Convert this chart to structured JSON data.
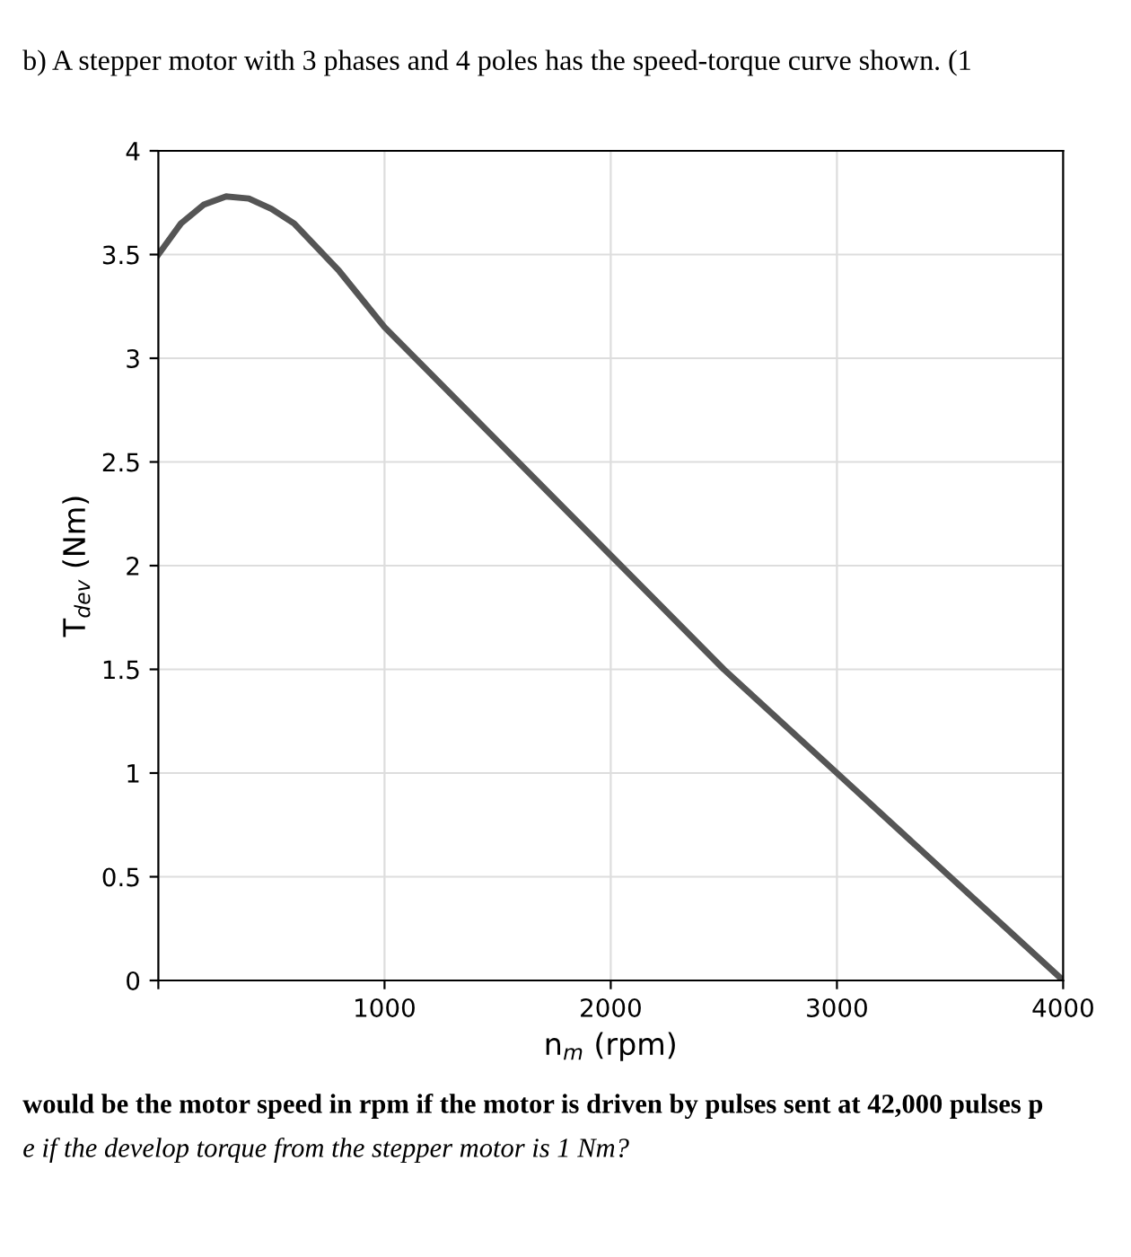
{
  "chart_data": {
    "type": "line",
    "title": "b) A stepper motor with 3 phases and 4 poles has the speed-torque curve shown. (1",
    "xlabel": "n$_{m}$ (rpm)",
    "ylabel": "T$_{dev}$ (Nm)",
    "x": [
      0,
      100,
      200,
      300,
      400,
      500,
      600,
      800,
      1000,
      1500,
      2000,
      2500,
      3000,
      3500,
      4000
    ],
    "series": [
      {
        "color": "#555555",
        "values": [
          3.5,
          3.65,
          3.74,
          3.78,
          3.77,
          3.72,
          3.65,
          3.42,
          3.15,
          2.6,
          2.05,
          1.5,
          1.0,
          0.5,
          0
        ]
      }
    ],
    "xlim": [
      0,
      4000
    ],
    "ylim": [
      0,
      4
    ],
    "xticks": [
      {
        "value": 0,
        "label": null
      },
      1000,
      2000,
      3000,
      4000
    ],
    "yticks": [
      0,
      0.5,
      1,
      1.5,
      2,
      2.5,
      3,
      3.5,
      4
    ],
    "grid": true,
    "marker": "none",
    "line_style": "solid",
    "legend": false,
    "annotations": [
      "would be the motor speed in rpm if the motor is driven by pulses sent at 42,000 pulses p",
      "e if the develop torque from the stepper motor is 1 Nm?"
    ]
  }
}
